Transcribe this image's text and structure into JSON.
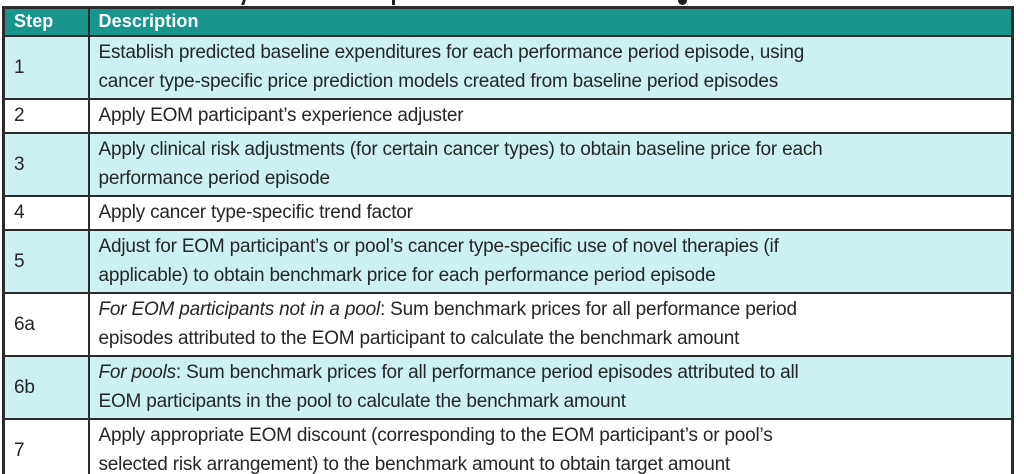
{
  "colors": {
    "header_bg": "#1a958c",
    "row_shaded_bg": "#cdf0f2",
    "row_plain_bg": "#ffffff",
    "border": "#2b2b2b",
    "header_text": "#ffffff",
    "body_text": "#262626"
  },
  "table": {
    "columns": [
      {
        "label": "Step"
      },
      {
        "label": "Description"
      }
    ],
    "rows": [
      {
        "step": "1",
        "italic": "",
        "text": "Establish predicted baseline expenditures for each performance period episode, using\ncancer type-specific price prediction models created from baseline period episodes"
      },
      {
        "step": "2",
        "italic": "",
        "text": "Apply EOM participant’s experience adjuster"
      },
      {
        "step": "3",
        "italic": "",
        "text": "Apply clinical risk adjustments (for certain cancer types) to obtain baseline price for each\nperformance period episode"
      },
      {
        "step": "4",
        "italic": "",
        "text": "Apply cancer type-specific trend factor"
      },
      {
        "step": "5",
        "italic": "",
        "text": "Adjust for EOM participant’s or pool’s cancer type-specific use of novel therapies (if\napplicable) to obtain benchmark price for each performance period episode"
      },
      {
        "step": "6a",
        "italic": "For EOM participants not in a pool",
        "text": ": Sum benchmark prices for all performance period\nepisodes attributed to the EOM participant to calculate the benchmark amount"
      },
      {
        "step": "6b",
        "italic": "For pools",
        "text": ": Sum benchmark prices for all performance period episodes attributed to all\nEOM participants in the pool to calculate the benchmark amount"
      },
      {
        "step": "7",
        "italic": "",
        "text": "Apply appropriate EOM discount (corresponding to the EOM participant’s or pool’s\nselected risk arrangement) to the benchmark amount to obtain target amount"
      }
    ]
  }
}
